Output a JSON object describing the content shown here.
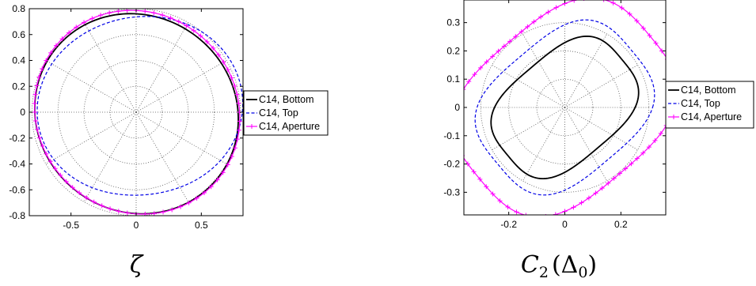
{
  "chart_data": [
    {
      "type": "polar-curve",
      "caption": "ζ",
      "xlim": [
        -0.82,
        0.82
      ],
      "ylim": [
        -0.8,
        0.8
      ],
      "x_ticks": [
        "-0.5",
        "0",
        "0.5"
      ],
      "x_tick_values": [
        -0.5,
        0,
        0.5
      ],
      "y_ticks": [
        "0.8",
        "0.6",
        "0.4",
        "0.2",
        "0",
        "-0.2",
        "-0.4",
        "-0.6",
        "-0.8"
      ],
      "y_tick_values": [
        0.8,
        0.6,
        0.4,
        0.2,
        0,
        -0.2,
        -0.4,
        -0.6,
        -0.8
      ],
      "polar_grid": {
        "radii": [
          0.2,
          0.4,
          0.6,
          0.8
        ],
        "spoke_step_deg": 30
      },
      "legend": {
        "placement": "right",
        "entries": [
          "C14, Bottom",
          "C14, Top",
          "C14, Aperture"
        ]
      },
      "series": [
        {
          "name": "C14, Bottom",
          "color": "#000000",
          "style": "solid",
          "marker": "none",
          "model": "r = r0 + a2·cos(2(θ−p2)) + a1·cos(θ−p1)",
          "params": {
            "r0": 0.776,
            "a2": 0.022,
            "p2_deg": -40,
            "a1": 0.012,
            "p1_deg": -80
          }
        },
        {
          "name": "C14, Top",
          "color": "#0000e6",
          "style": "dashed",
          "marker": "none",
          "params": {
            "r0": 0.738,
            "a2": 0.052,
            "p2_deg": 10,
            "a1": 0.055,
            "p1_deg": 60
          }
        },
        {
          "name": "C14, Aperture",
          "color": "#ff00ff",
          "style": "solid",
          "marker": "plus",
          "params": {
            "r0": 0.786,
            "a2": 0.022,
            "p2_deg": -45,
            "a1": 0.008,
            "p1_deg": 0
          }
        }
      ]
    },
    {
      "type": "polar-curve",
      "caption": "C",
      "caption_sub": "2",
      "caption_rest": "(Δ",
      "caption_sub2": "0",
      "caption_close": ")",
      "xlim": [
        -0.36,
        0.36
      ],
      "ylim": [
        -0.38,
        0.38
      ],
      "x_ticks": [
        "-0.2",
        "0",
        "0.2"
      ],
      "x_tick_values": [
        -0.2,
        0,
        0.2
      ],
      "y_ticks": [
        "0.3",
        "0.2",
        "0.1",
        "0",
        "-0.1",
        "-0.2",
        "-0.3"
      ],
      "y_tick_values": [
        0.3,
        0.2,
        0.1,
        0,
        -0.1,
        -0.2,
        -0.3
      ],
      "polar_grid": {
        "radii": [
          0.1,
          0.2,
          0.3
        ],
        "spoke_step_deg": 30
      },
      "legend": {
        "placement": "right",
        "entries": [
          "C14, Bottom",
          "C14, Top",
          "C14, Aperture"
        ]
      },
      "series": [
        {
          "name": "C14, Bottom",
          "color": "#000000",
          "style": "solid",
          "marker": "none",
          "model": "superellipse rotated by angle",
          "params": {
            "a": 0.265,
            "b": 0.185,
            "n": 3.2,
            "rot_deg": 40
          }
        },
        {
          "name": "C14, Top",
          "color": "#0000e6",
          "style": "dashed",
          "marker": "none",
          "params": {
            "a": 0.312,
            "b": 0.24,
            "n": 3.2,
            "rot_deg": 40
          }
        },
        {
          "name": "C14, Aperture",
          "color": "#ff00ff",
          "style": "solid",
          "marker": "plus",
          "params": {
            "a": 0.395,
            "b": 0.305,
            "n": 3.0,
            "rot_deg": 40
          }
        }
      ]
    }
  ]
}
